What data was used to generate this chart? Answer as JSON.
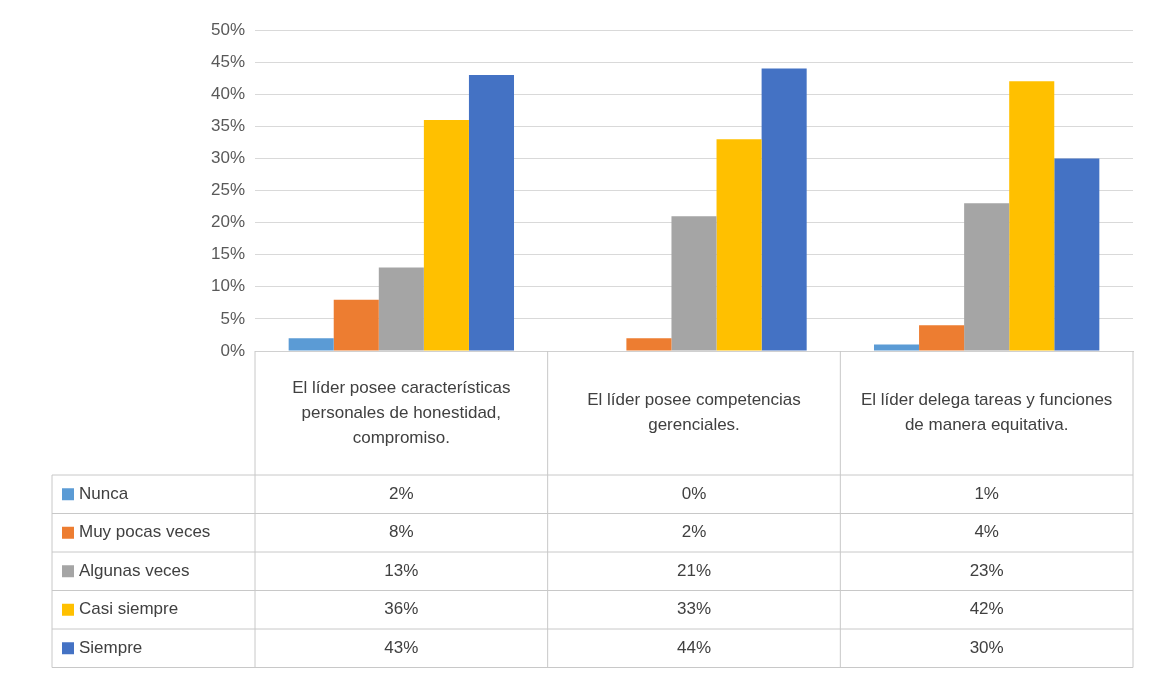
{
  "chart_data": {
    "type": "bar",
    "categories": [
      "El líder posee características personales de honestidad, compromiso.",
      "El líder posee competencias gerenciales.",
      "El líder delega tareas y funciones de manera equitativa."
    ],
    "series": [
      {
        "name": "Nunca",
        "color": "#5b9bd5",
        "values": [
          2,
          0,
          1
        ],
        "value_labels": [
          "2%",
          "0%",
          "1%"
        ]
      },
      {
        "name": "Muy pocas veces",
        "color": "#ed7d31",
        "values": [
          8,
          2,
          4
        ],
        "value_labels": [
          "8%",
          "2%",
          "4%"
        ]
      },
      {
        "name": "Algunas veces",
        "color": "#a5a5a5",
        "values": [
          13,
          21,
          23
        ],
        "value_labels": [
          "13%",
          "21%",
          "23%"
        ]
      },
      {
        "name": "Casi siempre",
        "color": "#ffc000",
        "values": [
          36,
          33,
          42
        ],
        "value_labels": [
          "36%",
          "33%",
          "42%"
        ]
      },
      {
        "name": "Siempre",
        "color": "#4472c4",
        "values": [
          43,
          44,
          30
        ],
        "value_labels": [
          "43%",
          "44%",
          "30%"
        ]
      }
    ],
    "ylim": [
      0,
      50
    ],
    "yticks": [
      {
        "value": 0,
        "label": "0%"
      },
      {
        "value": 5,
        "label": "5%"
      },
      {
        "value": 10,
        "label": "10%"
      },
      {
        "value": 15,
        "label": "15%"
      },
      {
        "value": 20,
        "label": "20%"
      },
      {
        "value": 25,
        "label": "25%"
      },
      {
        "value": 30,
        "label": "30%"
      },
      {
        "value": 35,
        "label": "35%"
      },
      {
        "value": 40,
        "label": "40%"
      },
      {
        "value": 45,
        "label": "45%"
      },
      {
        "value": 50,
        "label": "50%"
      }
    ],
    "grid": "y",
    "legend": "bottom"
  }
}
